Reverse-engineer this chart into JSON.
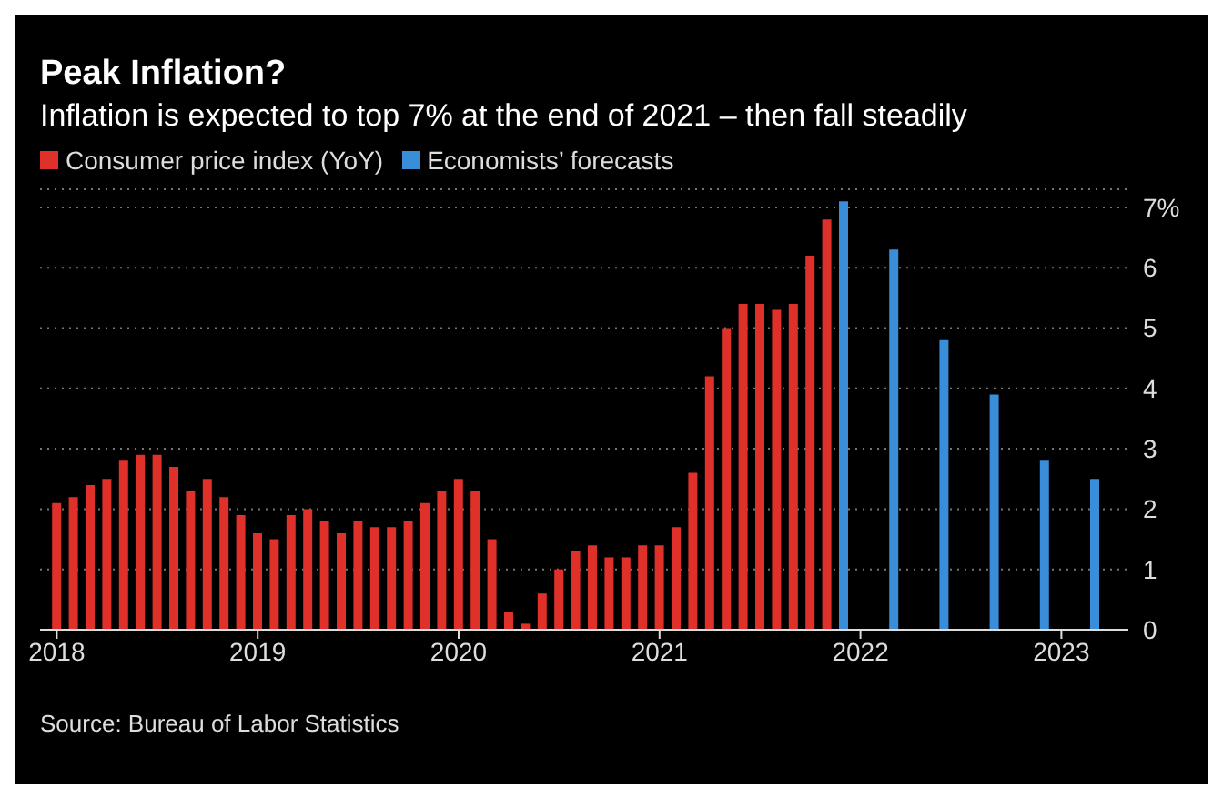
{
  "chart_data": {
    "type": "bar",
    "title": "Peak Inflation?",
    "subtitle": "Inflation is expected to top 7% at the end of 2021 – then fall steadily",
    "series": [
      {
        "name": "Consumer price index (YoY)",
        "color": "#e0302a",
        "x": [
          "2018-01",
          "2018-02",
          "2018-03",
          "2018-04",
          "2018-05",
          "2018-06",
          "2018-07",
          "2018-08",
          "2018-09",
          "2018-10",
          "2018-11",
          "2018-12",
          "2019-01",
          "2019-02",
          "2019-03",
          "2019-04",
          "2019-05",
          "2019-06",
          "2019-07",
          "2019-08",
          "2019-09",
          "2019-10",
          "2019-11",
          "2019-12",
          "2020-01",
          "2020-02",
          "2020-03",
          "2020-04",
          "2020-05",
          "2020-06",
          "2020-07",
          "2020-08",
          "2020-09",
          "2020-10",
          "2020-11",
          "2020-12",
          "2021-01",
          "2021-02",
          "2021-03",
          "2021-04",
          "2021-05",
          "2021-06",
          "2021-07",
          "2021-08",
          "2021-09",
          "2021-10",
          "2021-11"
        ],
        "values": [
          2.1,
          2.2,
          2.4,
          2.5,
          2.8,
          2.9,
          2.9,
          2.7,
          2.3,
          2.5,
          2.2,
          1.9,
          1.6,
          1.5,
          1.9,
          2.0,
          1.8,
          1.6,
          1.8,
          1.7,
          1.7,
          1.8,
          2.1,
          2.3,
          2.5,
          2.3,
          1.5,
          0.3,
          0.1,
          0.6,
          1.0,
          1.3,
          1.4,
          1.2,
          1.2,
          1.4,
          1.4,
          1.7,
          2.6,
          4.2,
          5.0,
          5.4,
          5.4,
          5.3,
          5.4,
          6.2,
          6.8
        ]
      },
      {
        "name": "Economists’ forecasts",
        "color": "#3a8dd8",
        "x": [
          "2021-12",
          "2022-03",
          "2022-06",
          "2022-09",
          "2022-12",
          "2023-03"
        ],
        "values": [
          7.1,
          6.3,
          4.8,
          3.9,
          2.8,
          2.5
        ]
      }
    ],
    "xlim": [
      "2017-12",
      "2023-05"
    ],
    "xticks": [
      {
        "value": "2018-01",
        "label": "2018"
      },
      {
        "value": "2019-01",
        "label": "2019"
      },
      {
        "value": "2020-01",
        "label": "2020"
      },
      {
        "value": "2021-01",
        "label": "2021"
      },
      {
        "value": "2022-01",
        "label": "2022"
      },
      {
        "value": "2023-01",
        "label": "2023"
      }
    ],
    "ylim": [
      0,
      7.3
    ],
    "yticks": [
      0,
      1,
      2,
      3,
      4,
      5,
      6,
      {
        "value": 7,
        "label": "7%"
      }
    ],
    "grid": "y",
    "legend": "top left",
    "annotations": [
      "Source: Bureau of Labor Statistics"
    ]
  }
}
